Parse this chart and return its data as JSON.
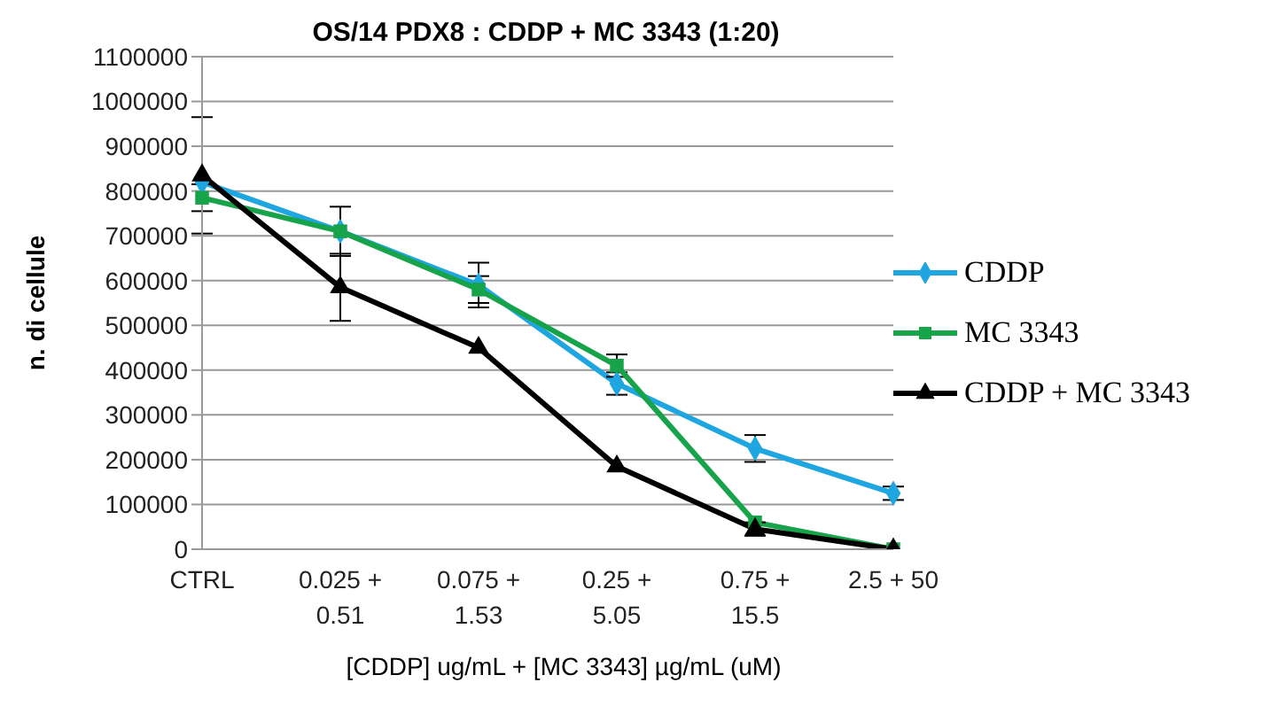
{
  "chart_data": {
    "type": "line",
    "title": "OS/14 PDX8 : CDDP + MC 3343 (1:20)",
    "xlabel": "[CDDP] ug/mL +  [MC 3343] µg/mL (uM)",
    "ylabel": "n. di cellule",
    "categories": [
      "CTRL",
      "0.025 + 0.51",
      "0.075 + 1.53",
      "0.25 + 5.05",
      "0.75 + 15.5",
      "2.5 + 50"
    ],
    "ylim": [
      0,
      1100000
    ],
    "yticks": [
      0,
      100000,
      200000,
      300000,
      400000,
      500000,
      600000,
      700000,
      800000,
      900000,
      1000000,
      1100000
    ],
    "grid": "y",
    "legend": "right",
    "series": [
      {
        "name": "CDDP",
        "color": "#1fa6e0",
        "marker": "diamond",
        "values": [
          820000,
          710000,
          590000,
          370000,
          225000,
          125000
        ],
        "errors": [
          null,
          55000,
          50000,
          25000,
          30000,
          15000
        ]
      },
      {
        "name": "MC 3343",
        "color": "#17a34a",
        "marker": "square",
        "values": [
          785000,
          710000,
          580000,
          410000,
          60000,
          0
        ],
        "errors": [
          30000,
          null,
          30000,
          25000,
          null,
          null
        ]
      },
      {
        "name": "CDDP + MC 3343",
        "color": "#000000",
        "marker": "triangle",
        "values": [
          835000,
          585000,
          450000,
          185000,
          45000,
          0
        ],
        "errors": [
          130000,
          75000,
          null,
          null,
          15000,
          null
        ]
      }
    ]
  }
}
